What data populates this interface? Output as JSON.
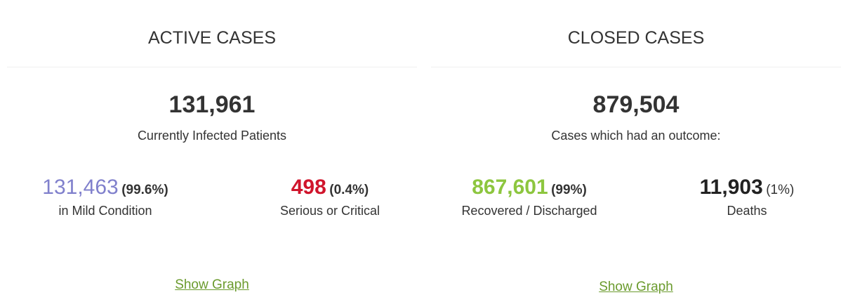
{
  "active": {
    "title": "ACTIVE CASES",
    "total": "131,961",
    "subtitle": "Currently Infected Patients",
    "left": {
      "value": "131,463",
      "pct": "(99.6%)",
      "label": "in Mild Condition"
    },
    "right": {
      "value": "498",
      "pct": "(0.4%)",
      "label": "Serious or Critical"
    },
    "link": "Show Graph"
  },
  "closed": {
    "title": "CLOSED CASES",
    "total": "879,504",
    "subtitle": "Cases which had an outcome:",
    "left": {
      "value": "867,601",
      "pct": "(99%)",
      "label": "Recovered / Discharged"
    },
    "right": {
      "value": "11,903",
      "pct": "(1%)",
      "label": "Deaths"
    },
    "link": "Show Graph"
  }
}
